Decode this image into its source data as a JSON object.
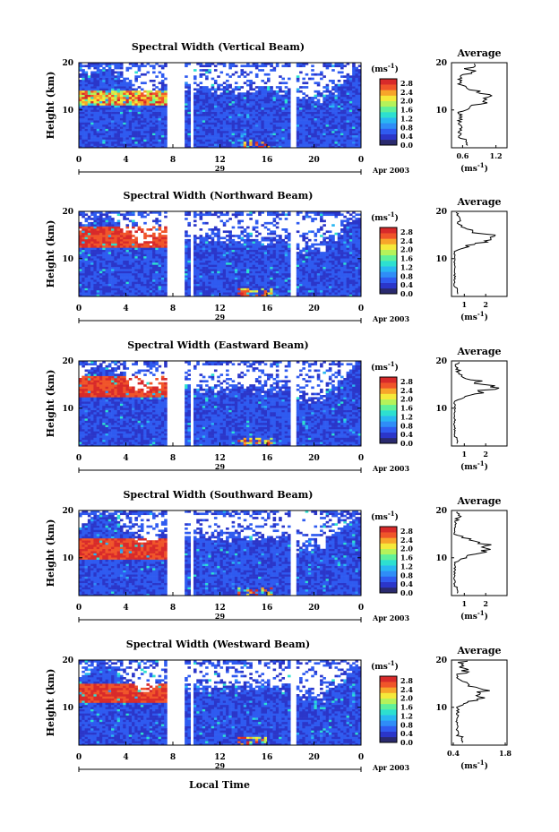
{
  "figure": {
    "xlabel": "Local Time",
    "ylabel": "Height (km)",
    "date_label": "Apr 2003",
    "date_day": "29",
    "x_ticks": [
      "0",
      "4",
      "8",
      "12",
      "16",
      "20",
      "0"
    ],
    "y_ticks": [
      "20",
      "10"
    ],
    "colorbar_unit": "(ms",
    "colorbar_unit_sup": "-1",
    "colorbar_ticks": [
      "2.8",
      "2.4",
      "2.0",
      "1.6",
      "1.2",
      "0.8",
      "0.4",
      "0.0"
    ],
    "avg_title": "Average",
    "avg_unit": "(ms",
    "avg_unit_sup": "-1"
  },
  "chart_data": [
    {
      "type": "heatmap",
      "title": "Spectral Width (Vertical Beam)",
      "xlabel": "Local Time",
      "ylabel": "Height (km)",
      "xlim": [
        0,
        24
      ],
      "ylim": [
        2,
        20
      ],
      "colorbar": {
        "range": [
          0.0,
          3.0
        ],
        "unit": "ms^-1"
      },
      "gaps_hours": [
        [
          7.6,
          9.0
        ],
        [
          9.5,
          9.8
        ],
        [
          18.1,
          18.4
        ]
      ],
      "average_profile": {
        "x_ticks": [
          "0.6",
          "1.2"
        ],
        "xlim": [
          0.4,
          1.4
        ],
        "peak_height_km": 12.5,
        "peak_value": 1.3,
        "background": 0.55
      }
    },
    {
      "type": "heatmap",
      "title": "Spectral Width (Northward Beam)",
      "xlabel": "Local Time",
      "ylabel": "Height (km)",
      "xlim": [
        0,
        24
      ],
      "ylim": [
        2,
        20
      ],
      "colorbar": {
        "range": [
          0.0,
          3.0
        ],
        "unit": "ms^-1"
      },
      "gaps_hours": [
        [
          7.6,
          9.0
        ],
        [
          9.5,
          9.8
        ],
        [
          18.1,
          18.4
        ]
      ],
      "average_profile": {
        "x_ticks": [
          "1",
          "2"
        ],
        "xlim": [
          0.4,
          3.0
        ],
        "peak_height_km": 14.5,
        "peak_value": 2.9,
        "background": 0.55
      }
    },
    {
      "type": "heatmap",
      "title": "Spectral Width (Eastward Beam)",
      "xlabel": "Local Time",
      "ylabel": "Height (km)",
      "xlim": [
        0,
        24
      ],
      "ylim": [
        2,
        20
      ],
      "colorbar": {
        "range": [
          0.0,
          3.0
        ],
        "unit": "ms^-1"
      },
      "gaps_hours": [
        [
          7.6,
          9.0
        ],
        [
          9.5,
          9.8
        ],
        [
          18.1,
          18.4
        ]
      ],
      "average_profile": {
        "x_ticks": [
          "1",
          "2"
        ],
        "xlim": [
          0.4,
          3.0
        ],
        "peak_height_km": 14.5,
        "peak_value": 2.9,
        "background": 0.55
      }
    },
    {
      "type": "heatmap",
      "title": "Spectral Width (Southward Beam)",
      "xlabel": "Local Time",
      "ylabel": "Height (km)",
      "xlim": [
        0,
        24
      ],
      "ylim": [
        2,
        20
      ],
      "colorbar": {
        "range": [
          0.0,
          3.0
        ],
        "unit": "ms^-1"
      },
      "gaps_hours": [
        [
          7.6,
          9.0
        ],
        [
          9.5,
          9.8
        ],
        [
          18.1,
          18.4
        ]
      ],
      "average_profile": {
        "x_ticks": [
          "1",
          "2"
        ],
        "xlim": [
          0.4,
          3.0
        ],
        "peak_height_km": 12.0,
        "peak_value": 2.9,
        "background": 0.55
      }
    },
    {
      "type": "heatmap",
      "title": "Spectral Width (Westward Beam)",
      "xlabel": "Local Time",
      "ylabel": "Height (km)",
      "xlim": [
        0,
        24
      ],
      "ylim": [
        2,
        20
      ],
      "colorbar": {
        "range": [
          0.0,
          3.0
        ],
        "unit": "ms^-1"
      },
      "gaps_hours": [
        [
          7.6,
          9.0
        ],
        [
          9.5,
          9.8
        ],
        [
          18.1,
          18.4
        ]
      ],
      "average_profile": {
        "x_ticks": [
          "0.4",
          "1.8"
        ],
        "xlim": [
          0.4,
          1.8
        ],
        "peak_height_km": 13.0,
        "peak_value": 1.6,
        "background": 0.55
      }
    }
  ]
}
